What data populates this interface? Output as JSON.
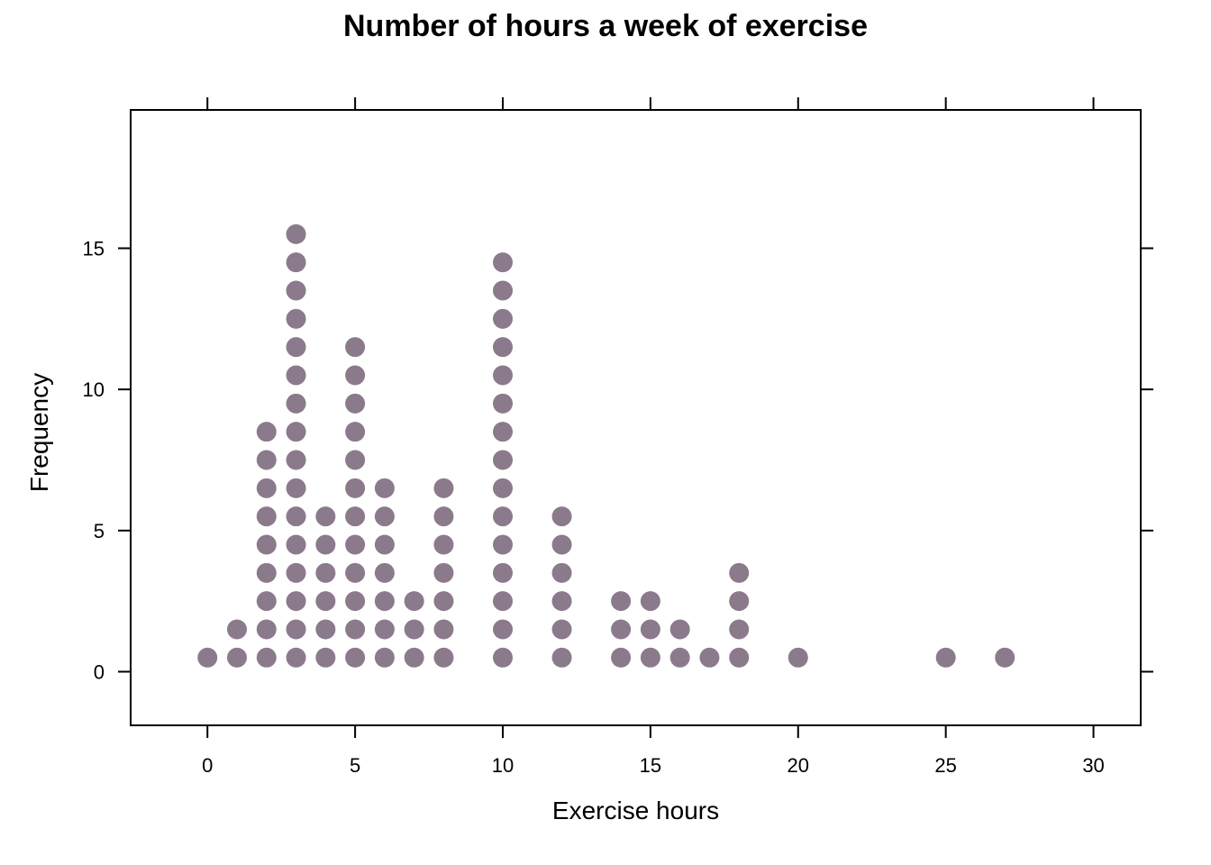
{
  "chart_data": {
    "type": "scatter",
    "title": "Number of hours a week of exercise",
    "xlabel": "Exercise hours",
    "ylabel": "Frequency",
    "xlim": [
      -2.6,
      31.6
    ],
    "ylim": [
      -1.9,
      19.9
    ],
    "xticks": [
      0,
      5,
      10,
      15,
      20,
      25,
      30
    ],
    "xtick_labels": [
      "0",
      "5",
      "10",
      "15",
      "20",
      "25",
      "30"
    ],
    "yticks": [
      0,
      5,
      10,
      15
    ],
    "ytick_labels": [
      "0",
      "5",
      "10",
      "15"
    ],
    "grid": false,
    "legend": "none",
    "dot_color": "#8b7a8c",
    "categories": [
      0,
      1,
      2,
      3,
      4,
      5,
      6,
      7,
      8,
      10,
      12,
      14,
      15,
      16,
      17,
      18,
      20,
      25,
      27
    ],
    "values": [
      1,
      2,
      9,
      16,
      6,
      12,
      7,
      3,
      7,
      15,
      6,
      3,
      3,
      2,
      1,
      4,
      1,
      1,
      1
    ]
  }
}
